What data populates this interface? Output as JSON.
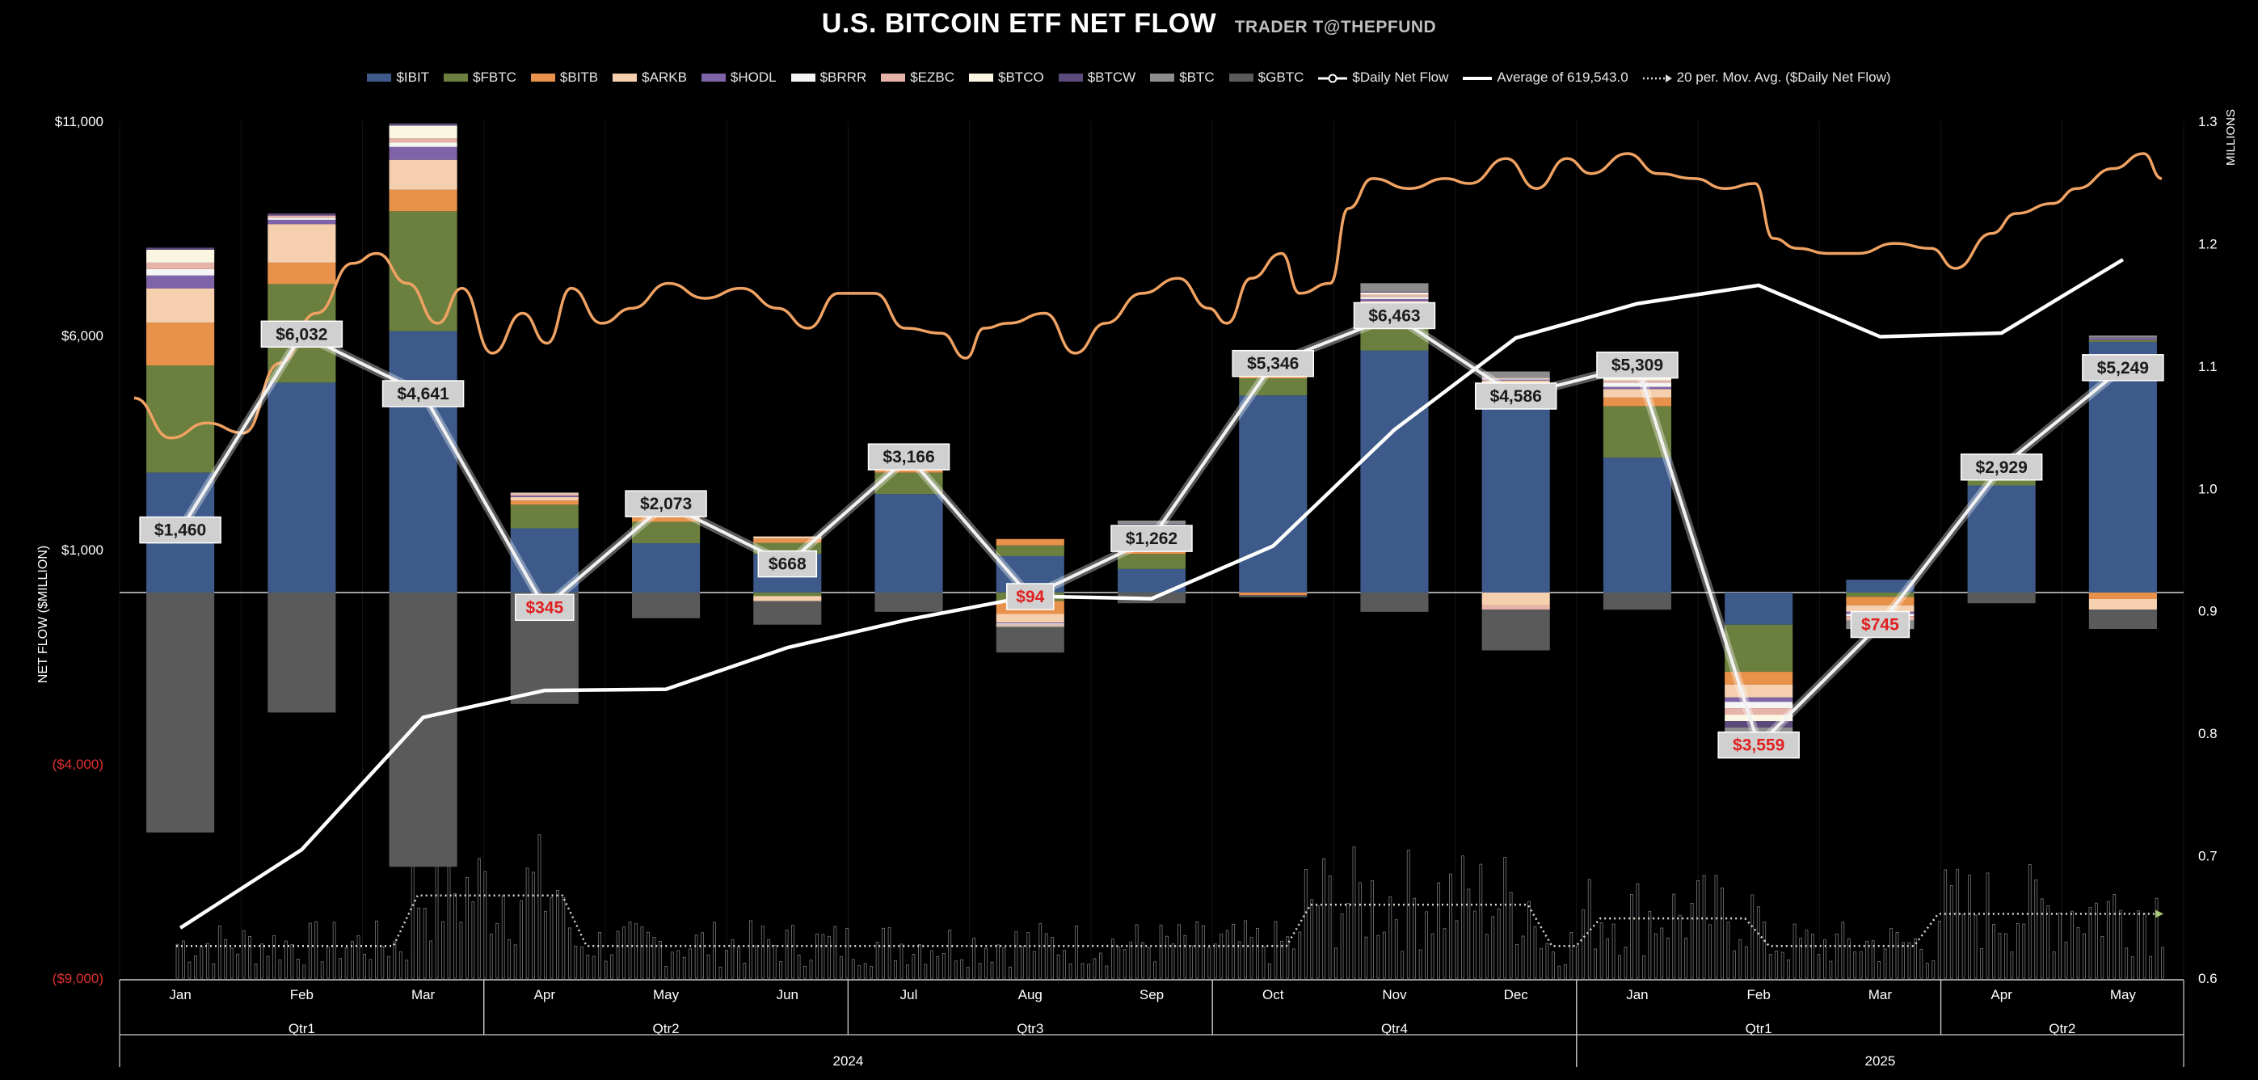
{
  "chart_data": {
    "type": "bar",
    "title": "U.S. BITCOIN ETF NET FLOW",
    "subtitle": "TRADER T@THEPFUND",
    "ylabel": "NET FLOW ($MILLION)",
    "y2label": "MILLIONS",
    "ylim": [
      -9000,
      11000
    ],
    "y2lim": [
      0.6,
      1.3
    ],
    "y_ticks": [
      {
        "v": 11000,
        "label": "$11,000",
        "neg": false
      },
      {
        "v": 6000,
        "label": "$6,000",
        "neg": false
      },
      {
        "v": 1000,
        "label": "$1,000",
        "neg": false
      },
      {
        "v": -4000,
        "label": "($4,000)",
        "neg": true
      },
      {
        "v": -9000,
        "label": "($9,000)",
        "neg": true
      }
    ],
    "y2_ticks": [
      "1.3",
      "1.2",
      "1.1",
      "1.0",
      "0.9",
      "0.8",
      "0.7",
      "0.6"
    ],
    "months": [
      "Jan",
      "Feb",
      "Mar",
      "Apr",
      "May",
      "Jun",
      "Jul",
      "Aug",
      "Sep",
      "Oct",
      "Nov",
      "Dec",
      "Jan",
      "Feb",
      "Mar",
      "Apr",
      "May"
    ],
    "quarters": [
      {
        "label": "Qtr1",
        "from": 0,
        "to": 3
      },
      {
        "label": "Qtr2",
        "from": 3,
        "to": 6
      },
      {
        "label": "Qtr3",
        "from": 6,
        "to": 9
      },
      {
        "label": "Qtr4",
        "from": 9,
        "to": 12
      },
      {
        "label": "Qtr1",
        "from": 12,
        "to": 15
      },
      {
        "label": "Qtr2",
        "from": 15,
        "to": 17
      }
    ],
    "years": [
      {
        "label": "2024",
        "from": 0,
        "to": 12
      },
      {
        "label": "2025",
        "from": 12,
        "to": 17
      }
    ],
    "series_meta": [
      {
        "name": "$IBIT",
        "color": "#3d5a8a"
      },
      {
        "name": "$FBTC",
        "color": "#6b7f3e"
      },
      {
        "name": "$BITB",
        "color": "#e8914b"
      },
      {
        "name": "$ARKB",
        "color": "#f6cfae"
      },
      {
        "name": "$HODL",
        "color": "#7f63a8"
      },
      {
        "name": "$BRRR",
        "color": "#f5f5f5"
      },
      {
        "name": "$EZBC",
        "color": "#e6b3a8"
      },
      {
        "name": "$BTCO",
        "color": "#fbf6e2"
      },
      {
        "name": "$BTCW",
        "color": "#5c4a7a"
      },
      {
        "name": "$BTC",
        "color": "#8c8c8c"
      },
      {
        "name": "$GBTC",
        "color": "#5a5a5a"
      }
    ],
    "legend_lines": [
      {
        "name": "$Daily Net Flow",
        "style": "marker"
      },
      {
        "name": "Average of  619,543.0",
        "style": "solid"
      },
      {
        "name": "20 per. Mov. Avg. ($Daily Net Flow)",
        "style": "dotted"
      }
    ],
    "stacks": [
      {
        "pos": [
          2800,
          2500,
          1000,
          800,
          300,
          150,
          150,
          300,
          50,
          0,
          0
        ],
        "neg": [
          0,
          0,
          0,
          0,
          0,
          0,
          0,
          0,
          0,
          0,
          -5600
        ]
      },
      {
        "pos": [
          4900,
          2300,
          500,
          900,
          100,
          50,
          50,
          0,
          50,
          0,
          0
        ],
        "neg": [
          0,
          0,
          0,
          0,
          0,
          0,
          0,
          0,
          0,
          0,
          -2800
        ]
      },
      {
        "pos": [
          6100,
          2800,
          500,
          700,
          300,
          100,
          100,
          300,
          50,
          0,
          0
        ],
        "neg": [
          0,
          0,
          0,
          0,
          0,
          0,
          0,
          0,
          0,
          0,
          -6400
        ]
      },
      {
        "pos": [
          1500,
          550,
          100,
          80,
          30,
          0,
          50,
          20,
          0,
          0,
          0
        ],
        "neg": [
          0,
          0,
          0,
          0,
          0,
          0,
          0,
          0,
          0,
          0,
          -2600
        ]
      },
      {
        "pos": [
          1150,
          500,
          230,
          200,
          50,
          50,
          50,
          50,
          0,
          0,
          0
        ],
        "neg": [
          0,
          0,
          0,
          0,
          0,
          0,
          0,
          0,
          0,
          0,
          -600
        ]
      },
      {
        "pos": [
          900,
          260,
          100,
          50,
          0,
          0,
          0,
          0,
          0,
          0,
          0
        ],
        "neg": [
          0,
          -80,
          0,
          -120,
          0,
          0,
          0,
          0,
          0,
          0,
          -550
        ]
      },
      {
        "pos": [
          2300,
          500,
          200,
          150,
          50,
          50,
          20,
          40,
          0,
          0,
          0
        ],
        "neg": [
          0,
          0,
          0,
          0,
          0,
          0,
          0,
          0,
          0,
          0,
          -450
        ]
      },
      {
        "pos": [
          850,
          250,
          150,
          0,
          0,
          0,
          0,
          0,
          0,
          0,
          0
        ],
        "neg": [
          0,
          -200,
          -300,
          -200,
          -20,
          -30,
          -30,
          -20,
          0,
          0,
          -600
        ]
      },
      {
        "pos": [
          550,
          350,
          250,
          200,
          60,
          60,
          60,
          50,
          20,
          80,
          0
        ],
        "neg": [
          0,
          0,
          0,
          0,
          0,
          0,
          0,
          0,
          0,
          0,
          -250
        ]
      },
      {
        "pos": [
          4600,
          400,
          150,
          150,
          30,
          20,
          20,
          30,
          0,
          60,
          0
        ],
        "neg": [
          0,
          0,
          -60,
          0,
          0,
          0,
          0,
          0,
          0,
          0,
          -50
        ]
      },
      {
        "pos": [
          5650,
          850,
          150,
          150,
          50,
          50,
          50,
          50,
          20,
          200,
          0
        ],
        "neg": [
          0,
          0,
          0,
          0,
          0,
          0,
          0,
          0,
          0,
          0,
          -450
        ]
      },
      {
        "pos": [
          4450,
          300,
          100,
          100,
          20,
          20,
          20,
          0,
          0,
          150,
          0
        ],
        "neg": [
          0,
          0,
          0,
          -300,
          0,
          0,
          -100,
          0,
          0,
          0,
          -950
        ]
      },
      {
        "pos": [
          3150,
          1200,
          200,
          200,
          50,
          100,
          50,
          100,
          50,
          400,
          0
        ],
        "neg": [
          0,
          0,
          0,
          0,
          0,
          0,
          0,
          0,
          0,
          0,
          -400
        ]
      },
      {
        "pos": [
          0,
          0,
          0,
          0,
          0,
          0,
          0,
          0,
          0,
          0,
          0
        ],
        "neg": [
          -750,
          -1100,
          -300,
          -300,
          -100,
          -150,
          -150,
          -150,
          -150,
          -150,
          -300
        ]
      },
      {
        "pos": [
          300,
          0,
          0,
          0,
          0,
          0,
          0,
          0,
          0,
          0,
          0
        ],
        "neg": [
          0,
          -100,
          -200,
          -150,
          -50,
          -50,
          -100,
          0,
          0,
          -200,
          0
        ]
      },
      {
        "pos": [
          2500,
          150,
          150,
          150,
          30,
          20,
          20,
          20,
          0,
          0,
          0
        ],
        "neg": [
          0,
          0,
          0,
          0,
          0,
          0,
          0,
          0,
          0,
          0,
          -250
        ]
      },
      {
        "pos": [
          5850,
          50,
          0,
          0,
          50,
          0,
          0,
          0,
          0,
          50,
          0
        ],
        "neg": [
          0,
          0,
          -150,
          -250,
          0,
          0,
          0,
          0,
          0,
          0,
          -450
        ]
      }
    ],
    "monthly_net_flow": [
      {
        "v": 1460,
        "label": "$1,460",
        "neg": false
      },
      {
        "v": 6032,
        "label": "$6,032",
        "neg": false
      },
      {
        "v": 4641,
        "label": "$4,641",
        "neg": false
      },
      {
        "v": -345,
        "label": "$345",
        "neg": true
      },
      {
        "v": 2073,
        "label": "$2,073",
        "neg": false
      },
      {
        "v": 668,
        "label": "$668",
        "neg": false
      },
      {
        "v": 3166,
        "label": "$3,166",
        "neg": false
      },
      {
        "v": -94,
        "label": "$94",
        "neg": true
      },
      {
        "v": 1262,
        "label": "$1,262",
        "neg": false
      },
      {
        "v": 5346,
        "label": "$5,346",
        "neg": false
      },
      {
        "v": 6463,
        "label": "$6,463",
        "neg": false
      },
      {
        "v": 4586,
        "label": "$4,586",
        "neg": false
      },
      {
        "v": 5309,
        "label": "$5,309",
        "neg": false
      },
      {
        "v": -3559,
        "label": "$3,559",
        "neg": true
      },
      {
        "v": -745,
        "label": "$745",
        "neg": true
      },
      {
        "v": 2929,
        "label": "$2,929",
        "neg": false
      },
      {
        "v": 5249,
        "label": "$5,249",
        "neg": false
      }
    ],
    "cumulative_average_millions": [
      0.641,
      0.705,
      0.813,
      0.835,
      0.836,
      0.87,
      0.893,
      0.912,
      0.91,
      0.953,
      1.048,
      1.123,
      1.151,
      1.166,
      1.124,
      1.127,
      1.187
    ],
    "btc_price_curve": {
      "min": 0,
      "max": 1,
      "points": [
        [
          0,
          0.49
        ],
        [
          0.3,
          0.57
        ],
        [
          0.6,
          0.54
        ],
        [
          0.9,
          0.56
        ],
        [
          1.2,
          0.42
        ],
        [
          1.5,
          0.32
        ],
        [
          1.8,
          0.22
        ],
        [
          2.0,
          0.2
        ],
        [
          2.25,
          0.26
        ],
        [
          2.5,
          0.34
        ],
        [
          2.7,
          0.27
        ],
        [
          2.95,
          0.4
        ],
        [
          3.2,
          0.32
        ],
        [
          3.4,
          0.38
        ],
        [
          3.6,
          0.27
        ],
        [
          3.85,
          0.34
        ],
        [
          4.1,
          0.31
        ],
        [
          4.4,
          0.26
        ],
        [
          4.7,
          0.29
        ],
        [
          5.0,
          0.27
        ],
        [
          5.3,
          0.31
        ],
        [
          5.55,
          0.35
        ],
        [
          5.8,
          0.28
        ],
        [
          6.1,
          0.28
        ],
        [
          6.35,
          0.35
        ],
        [
          6.65,
          0.36
        ],
        [
          6.85,
          0.41
        ],
        [
          7.0,
          0.35
        ],
        [
          7.2,
          0.34
        ],
        [
          7.5,
          0.32
        ],
        [
          7.75,
          0.4
        ],
        [
          8.0,
          0.34
        ],
        [
          8.3,
          0.28
        ],
        [
          8.6,
          0.25
        ],
        [
          8.85,
          0.31
        ],
        [
          9.0,
          0.34
        ],
        [
          9.2,
          0.25
        ],
        [
          9.45,
          0.2
        ],
        [
          9.6,
          0.28
        ],
        [
          9.85,
          0.26
        ],
        [
          10.0,
          0.11
        ],
        [
          10.2,
          0.05
        ],
        [
          10.5,
          0.07
        ],
        [
          10.8,
          0.05
        ],
        [
          11.0,
          0.06
        ],
        [
          11.3,
          0.01
        ],
        [
          11.55,
          0.07
        ],
        [
          11.8,
          0.01
        ],
        [
          12.0,
          0.04
        ],
        [
          12.3,
          0.0
        ],
        [
          12.55,
          0.04
        ],
        [
          12.85,
          0.05
        ],
        [
          13.1,
          0.07
        ],
        [
          13.35,
          0.06
        ],
        [
          13.5,
          0.17
        ],
        [
          13.7,
          0.19
        ],
        [
          13.95,
          0.2
        ],
        [
          14.2,
          0.2
        ],
        [
          14.5,
          0.18
        ],
        [
          14.8,
          0.19
        ],
        [
          15.0,
          0.23
        ],
        [
          15.3,
          0.16
        ],
        [
          15.5,
          0.12
        ],
        [
          15.8,
          0.1
        ],
        [
          16.0,
          0.07
        ],
        [
          16.3,
          0.03
        ],
        [
          16.55,
          0.0
        ],
        [
          16.7,
          0.05
        ]
      ]
    },
    "daily_volume_note": "daily trading volume bars with 20-period moving average"
  }
}
